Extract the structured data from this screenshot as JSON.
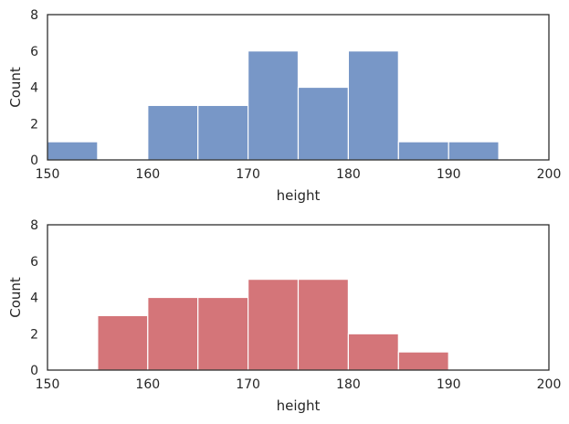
{
  "chart_data": [
    {
      "type": "bar",
      "subtype": "histogram",
      "title": "",
      "xlabel": "height",
      "ylabel": "Count",
      "xlim": [
        150,
        200
      ],
      "ylim": [
        0,
        8
      ],
      "xticks": [
        150,
        160,
        170,
        180,
        190,
        200
      ],
      "yticks": [
        0,
        2,
        4,
        6,
        8
      ],
      "grid": false,
      "color": "#7897c7",
      "bins": [
        {
          "x0": 150,
          "x1": 155,
          "count": 1
        },
        {
          "x0": 160,
          "x1": 165,
          "count": 3
        },
        {
          "x0": 165,
          "x1": 170,
          "count": 3
        },
        {
          "x0": 170,
          "x1": 175,
          "count": 6
        },
        {
          "x0": 175,
          "x1": 180,
          "count": 4
        },
        {
          "x0": 180,
          "x1": 185,
          "count": 6
        },
        {
          "x0": 185,
          "x1": 190,
          "count": 1
        },
        {
          "x0": 190,
          "x1": 195,
          "count": 1
        }
      ]
    },
    {
      "type": "bar",
      "subtype": "histogram",
      "title": "",
      "xlabel": "height",
      "ylabel": "Count",
      "xlim": [
        150,
        200
      ],
      "ylim": [
        0,
        8
      ],
      "xticks": [
        150,
        160,
        170,
        180,
        190,
        200
      ],
      "yticks": [
        0,
        2,
        4,
        6,
        8
      ],
      "grid": false,
      "color": "#d47579",
      "bins": [
        {
          "x0": 155,
          "x1": 160,
          "count": 3
        },
        {
          "x0": 160,
          "x1": 165,
          "count": 4
        },
        {
          "x0": 165,
          "x1": 170,
          "count": 4
        },
        {
          "x0": 170,
          "x1": 175,
          "count": 5
        },
        {
          "x0": 175,
          "x1": 180,
          "count": 5
        },
        {
          "x0": 180,
          "x1": 185,
          "count": 2
        },
        {
          "x0": 185,
          "x1": 190,
          "count": 1
        }
      ]
    }
  ]
}
